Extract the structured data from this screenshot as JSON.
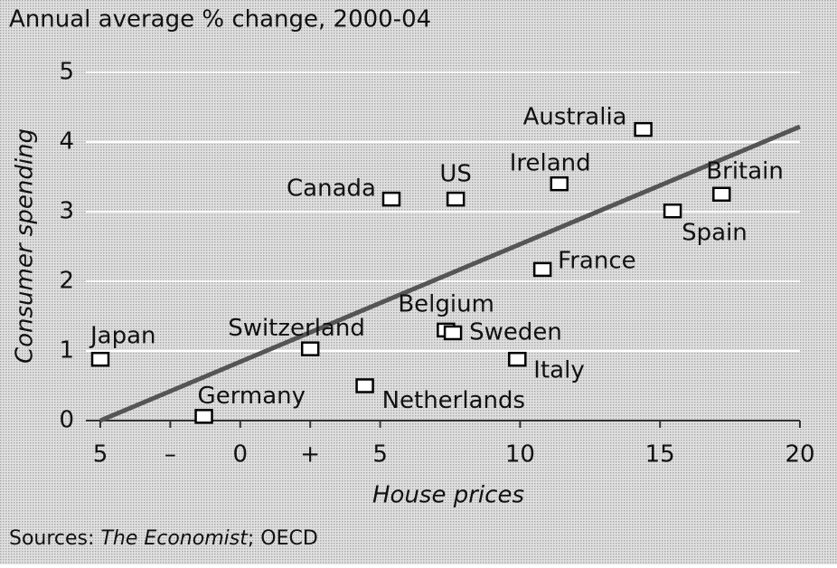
{
  "chart_data": {
    "type": "scatter",
    "title": "Annual average % change, 2000-04",
    "x_label": "House prices",
    "y_label": "Consumer spending",
    "source": {
      "prefix": "Sources:",
      "publication": "The Economist",
      "suffix": "; OECD"
    },
    "color": "#000000",
    "grid": true,
    "xlim": [
      -5,
      20
    ],
    "ylim": [
      0,
      5
    ],
    "xticks": [
      {
        "value": -5,
        "label": "5"
      },
      {
        "value": -2.5,
        "label": "–"
      },
      0,
      {
        "value": 2.5,
        "label": "+"
      },
      5,
      10,
      15,
      20
    ],
    "yticks": [
      0,
      1,
      2,
      3,
      4,
      5
    ],
    "points": [
      {
        "name": "Japan",
        "x": -5,
        "y": 0.88
      },
      {
        "name": "Germany",
        "x": -1.3,
        "y": 0.06
      },
      {
        "name": "Switzerland",
        "x": 2.5,
        "y": 1.03
      },
      {
        "name": "Netherlands",
        "x": 4.45,
        "y": 0.5
      },
      {
        "name": "Canada",
        "x": 5.4,
        "y": 3.18
      },
      {
        "name": "US",
        "x": 7.7,
        "y": 3.18
      },
      {
        "name": "Belgium",
        "x": 7.35,
        "y": 1.3
      },
      {
        "name": "Sweden",
        "x": 7.6,
        "y": 1.26
      },
      {
        "name": "Italy",
        "x": 9.9,
        "y": 0.88
      },
      {
        "name": "France",
        "x": 10.8,
        "y": 2.17
      },
      {
        "name": "Ireland",
        "x": 11.4,
        "y": 3.4
      },
      {
        "name": "Australia",
        "x": 14.4,
        "y": 4.18
      },
      {
        "name": "Spain",
        "x": 15.45,
        "y": 3.01
      },
      {
        "name": "Britain",
        "x": 17.2,
        "y": 3.25
      }
    ],
    "trend_line": {
      "x": [
        -5,
        20
      ],
      "y": [
        0,
        4.22
      ]
    }
  }
}
